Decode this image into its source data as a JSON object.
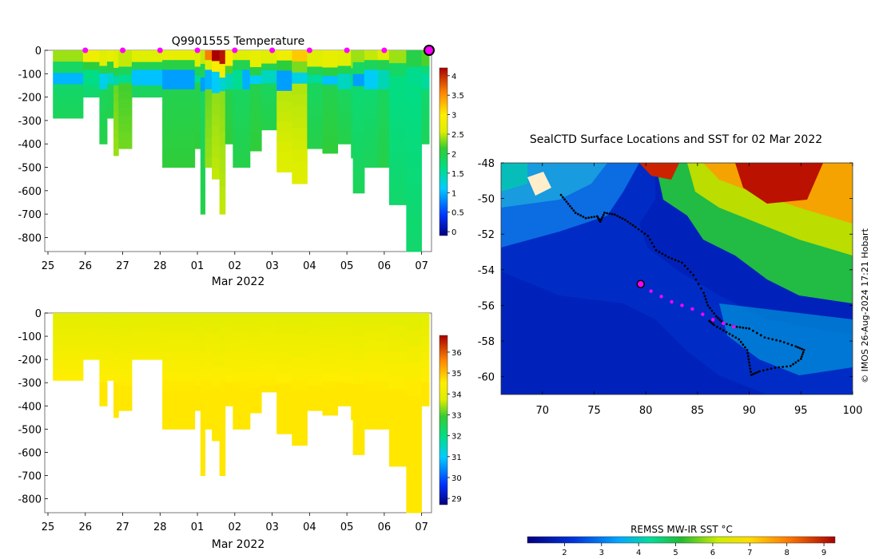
{
  "chart_data": [
    {
      "type": "heatmap",
      "title": "Q9901555  Temperature",
      "xlabel": "Mar 2022",
      "ylabel": "",
      "x_ticks": [
        "25",
        "26",
        "27",
        "28",
        "01",
        "02",
        "03",
        "04",
        "05",
        "06",
        "07"
      ],
      "y_ticks": [
        0,
        -100,
        -200,
        -300,
        -400,
        -500,
        -600,
        -700,
        -800
      ],
      "ylim": [
        -860,
        0
      ],
      "colorbar_ticks": [
        "4",
        "3.5",
        "3",
        "2.5",
        "2",
        "1.5",
        "1",
        "0.5",
        "0"
      ],
      "colorbar_range": [
        -0.1,
        4.2
      ],
      "marker_color": "#ff00ff",
      "profiles": [
        {
          "day": 0.13,
          "max_depth": 290,
          "surface_temp": 2.4,
          "deep_temp": 1.8
        },
        {
          "day": 0.92,
          "max_depth": 200,
          "surface_temp": 2.8,
          "deep_temp": 1.7
        },
        {
          "day": 1.35,
          "max_depth": 400,
          "surface_temp": 2.6,
          "deep_temp": 1.9
        },
        {
          "day": 1.55,
          "max_depth": 290,
          "surface_temp": 2.7,
          "deep_temp": 1.9
        },
        {
          "day": 1.72,
          "max_depth": 450,
          "surface_temp": 2.6,
          "deep_temp": 2.3
        },
        {
          "day": 1.85,
          "max_depth": 420,
          "surface_temp": 2.5,
          "deep_temp": 2.2
        },
        {
          "day": 2.2,
          "max_depth": 200,
          "surface_temp": 2.6,
          "deep_temp": 1.8
        },
        {
          "day": 3.0,
          "max_depth": 500,
          "surface_temp": 2.7,
          "deep_temp": 2.0
        },
        {
          "day": 3.85,
          "max_depth": 420,
          "surface_temp": 2.6,
          "deep_temp": 2.0
        },
        {
          "day": 4.0,
          "max_depth": 700,
          "surface_temp": 2.5,
          "deep_temp": 1.9
        },
        {
          "day": 4.12,
          "max_depth": 500,
          "surface_temp": 3.6,
          "deep_temp": 2.3
        },
        {
          "day": 4.3,
          "max_depth": 550,
          "surface_temp": 4.2,
          "deep_temp": 2.4
        },
        {
          "day": 4.5,
          "max_depth": 700,
          "surface_temp": 4.1,
          "deep_temp": 2.4
        },
        {
          "day": 4.65,
          "max_depth": 400,
          "surface_temp": 3.0,
          "deep_temp": 2.0
        },
        {
          "day": 4.85,
          "max_depth": 500,
          "surface_temp": 2.6,
          "deep_temp": 1.9
        },
        {
          "day": 5.1,
          "max_depth": 500,
          "surface_temp": 2.6,
          "deep_temp": 1.9
        },
        {
          "day": 5.3,
          "max_depth": 430,
          "surface_temp": 2.7,
          "deep_temp": 2.0
        },
        {
          "day": 5.6,
          "max_depth": 340,
          "surface_temp": 2.6,
          "deep_temp": 1.9
        },
        {
          "day": 6.0,
          "max_depth": 520,
          "surface_temp": 2.8,
          "deep_temp": 2.5
        },
        {
          "day": 6.4,
          "max_depth": 570,
          "surface_temp": 3.2,
          "deep_temp": 2.5
        },
        {
          "day": 6.8,
          "max_depth": 420,
          "surface_temp": 2.6,
          "deep_temp": 1.9
        },
        {
          "day": 7.2,
          "max_depth": 440,
          "surface_temp": 2.7,
          "deep_temp": 2.0
        },
        {
          "day": 7.6,
          "max_depth": 400,
          "surface_temp": 2.6,
          "deep_temp": 1.9
        },
        {
          "day": 7.95,
          "max_depth": 460,
          "surface_temp": 2.4,
          "deep_temp": 1.8
        },
        {
          "day": 8.0,
          "max_depth": 610,
          "surface_temp": 2.4,
          "deep_temp": 1.8
        },
        {
          "day": 8.3,
          "max_depth": 500,
          "surface_temp": 2.5,
          "deep_temp": 1.8
        },
        {
          "day": 8.65,
          "max_depth": 500,
          "surface_temp": 2.6,
          "deep_temp": 1.9
        },
        {
          "day": 8.95,
          "max_depth": 660,
          "surface_temp": 2.4,
          "deep_temp": 1.7
        },
        {
          "day": 9.4,
          "max_depth": 860,
          "surface_temp": 2.0,
          "deep_temp": 1.7
        },
        {
          "day": 9.8,
          "max_depth": 400,
          "surface_temp": 2.2,
          "deep_temp": 1.8
        }
      ]
    },
    {
      "type": "heatmap",
      "title": "",
      "xlabel": "Mar 2022",
      "ylabel": "",
      "x_ticks": [
        "25",
        "26",
        "27",
        "28",
        "01",
        "02",
        "03",
        "04",
        "05",
        "06",
        "07"
      ],
      "y_ticks": [
        0,
        -100,
        -200,
        -300,
        -400,
        -500,
        -600,
        -700,
        -800
      ],
      "ylim": [
        -860,
        0
      ],
      "colorbar_ticks": [
        "36",
        "35",
        "34",
        "33",
        "32",
        "31",
        "30",
        "29"
      ],
      "colorbar_range": [
        28.7,
        36.8
      ],
      "profiles_same_as_above": true,
      "surface_value": 33.9,
      "deep_value": 34.6
    },
    {
      "type": "map",
      "title": "SealCTD Surface Locations and SST for 02 Mar 2022",
      "x_ticks": [
        "70",
        "75",
        "80",
        "85",
        "90",
        "95",
        "100"
      ],
      "y_ticks": [
        "-48",
        "-50",
        "-52",
        "-54",
        "-56",
        "-58",
        "-60"
      ],
      "xlim": [
        66,
        100
      ],
      "ylim": [
        -61,
        -48
      ],
      "colorbar_label": "REMSS MW-IR SST °C",
      "colorbar_ticks": [
        "2",
        "3",
        "4",
        "5",
        "6",
        "7",
        "8",
        "9"
      ],
      "colorbar_range": [
        1,
        9.3
      ],
      "side_text": "© IMOS 26-Aug-2024 17:21 Hobart",
      "current_position": {
        "lon": 79.5,
        "lat": -54.8
      },
      "track_points": [
        {
          "lon": 71.8,
          "lat": -49.8
        },
        {
          "lon": 72.5,
          "lat": -50.3
        },
        {
          "lon": 73.2,
          "lat": -50.8
        },
        {
          "lon": 74.2,
          "lat": -51.1
        },
        {
          "lon": 75.3,
          "lat": -51.0
        },
        {
          "lon": 75.6,
          "lat": -51.3
        },
        {
          "lon": 76.0,
          "lat": -50.8
        },
        {
          "lon": 77.0,
          "lat": -50.9
        },
        {
          "lon": 78.0,
          "lat": -51.2
        },
        {
          "lon": 79.0,
          "lat": -51.6
        },
        {
          "lon": 80.2,
          "lat": -52.1
        },
        {
          "lon": 81.0,
          "lat": -52.9
        },
        {
          "lon": 82.2,
          "lat": -53.3
        },
        {
          "lon": 83.5,
          "lat": -53.6
        },
        {
          "lon": 84.6,
          "lat": -54.3
        },
        {
          "lon": 85.6,
          "lat": -55.3
        },
        {
          "lon": 86.0,
          "lat": -56.0
        },
        {
          "lon": 86.8,
          "lat": -56.6
        },
        {
          "lon": 87.5,
          "lat": -57.0
        },
        {
          "lon": 88.8,
          "lat": -57.2
        },
        {
          "lon": 90.0,
          "lat": -57.3
        },
        {
          "lon": 91.5,
          "lat": -57.8
        },
        {
          "lon": 93.0,
          "lat": -58.0
        },
        {
          "lon": 94.5,
          "lat": -58.3
        },
        {
          "lon": 95.3,
          "lat": -58.5
        },
        {
          "lon": 95.0,
          "lat": -59.0
        },
        {
          "lon": 94.0,
          "lat": -59.4
        },
        {
          "lon": 92.5,
          "lat": -59.5
        },
        {
          "lon": 91.0,
          "lat": -59.7
        },
        {
          "lon": 90.2,
          "lat": -59.9
        },
        {
          "lon": 90.0,
          "lat": -59.2
        },
        {
          "lon": 89.8,
          "lat": -58.5
        },
        {
          "lon": 89.0,
          "lat": -57.9
        },
        {
          "lon": 87.8,
          "lat": -57.5
        },
        {
          "lon": 86.6,
          "lat": -57.1
        },
        {
          "lon": 86.0,
          "lat": -56.8
        }
      ],
      "recent_points": [
        {
          "lon": 80.5,
          "lat": -55.2
        },
        {
          "lon": 81.5,
          "lat": -55.5
        },
        {
          "lon": 82.5,
          "lat": -55.8
        },
        {
          "lon": 83.5,
          "lat": -56.0
        },
        {
          "lon": 84.5,
          "lat": -56.2
        },
        {
          "lon": 85.5,
          "lat": -56.5
        },
        {
          "lon": 86.5,
          "lat": -56.8
        },
        {
          "lon": 87.5,
          "lat": -57.0
        },
        {
          "lon": 88.5,
          "lat": -57.2
        }
      ]
    }
  ]
}
